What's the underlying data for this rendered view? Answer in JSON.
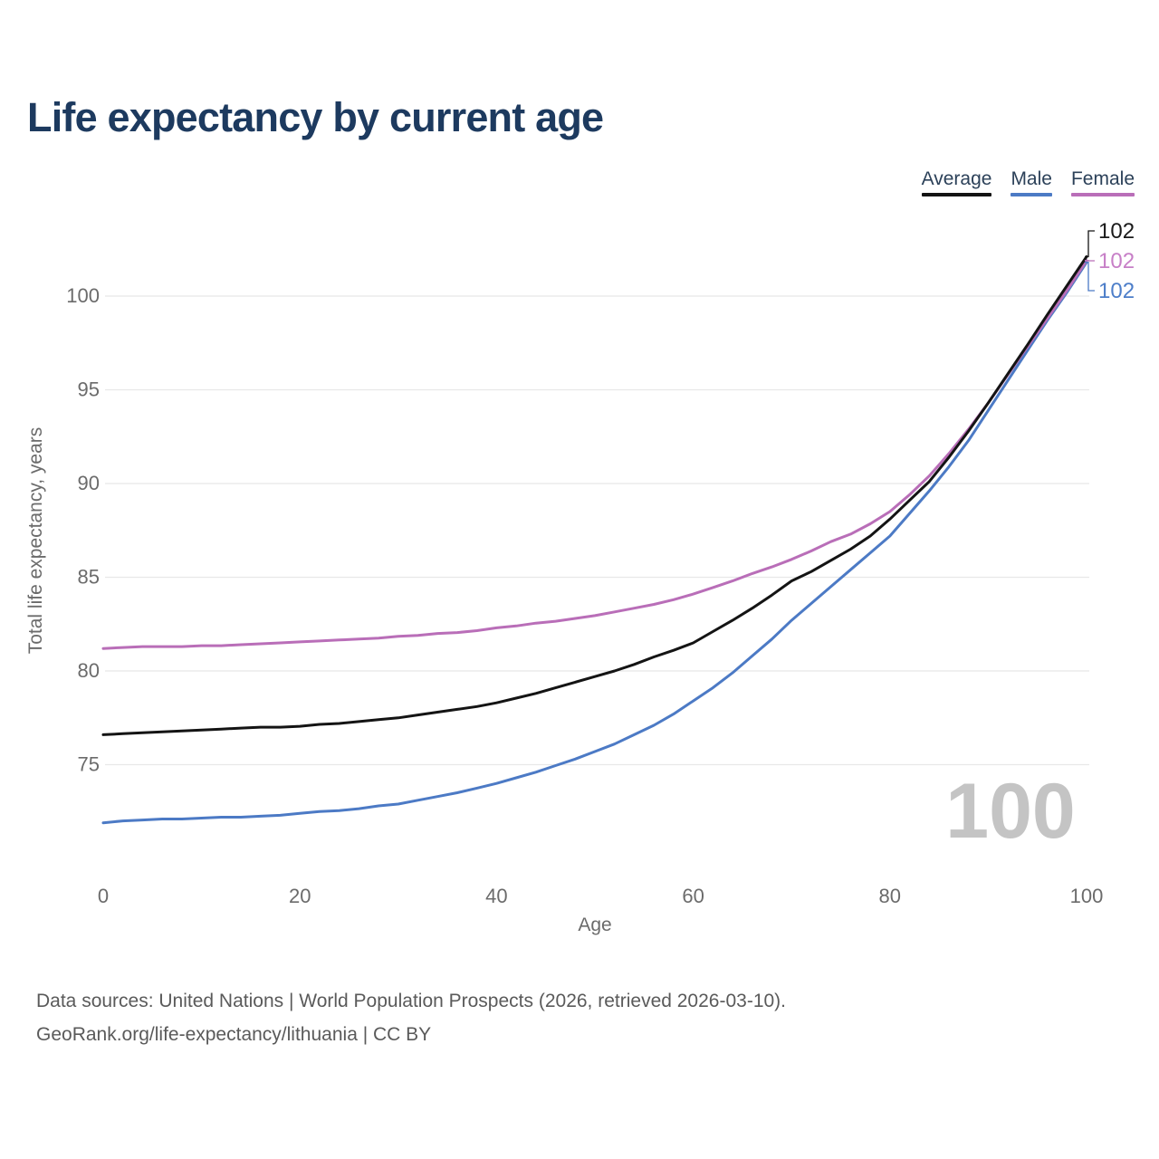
{
  "title": "Life expectancy by current age",
  "watermark": "100",
  "footer": {
    "line1": "Data sources: United Nations | World Population Prospects (2026, retrieved 2026-03-10).",
    "line2": "GeoRank.org/life-expectancy/lithuania | CC BY"
  },
  "colors": {
    "title_text": "#1d3a5f",
    "legend_text": "#2c4159",
    "axis_text": "#6b6b6b",
    "grid": "#e8e8e8",
    "watermark": "#c4c4c4",
    "footer_text": "#5a5a5a"
  },
  "chart_data": {
    "type": "line",
    "title": "Life expectancy by current age",
    "xlabel": "Age",
    "ylabel": "Total life expectancy, years",
    "xlim": [
      0,
      100
    ],
    "ylim": [
      71,
      103
    ],
    "xticks": [
      0,
      20,
      40,
      60,
      80,
      100
    ],
    "yticks": [
      75,
      80,
      85,
      90,
      95,
      100
    ],
    "grid": "horizontal",
    "legend_position": "top-right",
    "x": [
      0,
      2,
      4,
      6,
      8,
      10,
      12,
      14,
      16,
      18,
      20,
      22,
      24,
      26,
      28,
      30,
      32,
      34,
      36,
      38,
      40,
      42,
      44,
      46,
      48,
      50,
      52,
      54,
      56,
      58,
      60,
      62,
      64,
      66,
      68,
      70,
      72,
      74,
      76,
      78,
      80,
      82,
      84,
      86,
      88,
      90,
      92,
      94,
      96,
      98,
      100
    ],
    "series": [
      {
        "name": "Average",
        "color": "#141414",
        "label_color": "#1a1a1a",
        "end_label": "102",
        "values": [
          76.6,
          76.65,
          76.7,
          76.75,
          76.8,
          76.85,
          76.9,
          76.95,
          77.0,
          77.0,
          77.05,
          77.15,
          77.2,
          77.3,
          77.4,
          77.5,
          77.65,
          77.8,
          77.95,
          78.1,
          78.3,
          78.55,
          78.8,
          79.1,
          79.4,
          79.7,
          80.0,
          80.35,
          80.75,
          81.1,
          81.5,
          82.1,
          82.7,
          83.35,
          84.05,
          84.8,
          85.3,
          85.9,
          86.5,
          87.2,
          88.1,
          89.1,
          90.1,
          91.4,
          92.8,
          94.3,
          95.85,
          97.4,
          99.0,
          100.55,
          102.1
        ]
      },
      {
        "name": "Male",
        "color": "#4c7ac5",
        "label_color": "#4d7ec9",
        "end_label": "102",
        "values": [
          71.9,
          72.0,
          72.05,
          72.1,
          72.1,
          72.15,
          72.2,
          72.2,
          72.25,
          72.3,
          72.4,
          72.5,
          72.55,
          72.65,
          72.8,
          72.9,
          73.1,
          73.3,
          73.5,
          73.75,
          74.0,
          74.3,
          74.6,
          74.95,
          75.3,
          75.7,
          76.1,
          76.6,
          77.1,
          77.7,
          78.4,
          79.1,
          79.9,
          80.8,
          81.7,
          82.7,
          83.6,
          84.5,
          85.4,
          86.3,
          87.2,
          88.4,
          89.6,
          90.9,
          92.3,
          93.9,
          95.5,
          97.1,
          98.7,
          100.2,
          101.8
        ]
      },
      {
        "name": "Female",
        "color": "#b96eb8",
        "label_color": "#c77fc7",
        "end_label": "102",
        "values": [
          81.2,
          81.25,
          81.3,
          81.3,
          81.3,
          81.35,
          81.35,
          81.4,
          81.45,
          81.5,
          81.55,
          81.6,
          81.65,
          81.7,
          81.75,
          81.85,
          81.9,
          82.0,
          82.05,
          82.15,
          82.3,
          82.4,
          82.55,
          82.65,
          82.8,
          82.95,
          83.15,
          83.35,
          83.55,
          83.8,
          84.1,
          84.45,
          84.8,
          85.2,
          85.55,
          85.95,
          86.4,
          86.9,
          87.3,
          87.85,
          88.5,
          89.4,
          90.4,
          91.6,
          92.9,
          94.3,
          95.8,
          97.3,
          98.8,
          100.3,
          101.9
        ]
      }
    ]
  }
}
